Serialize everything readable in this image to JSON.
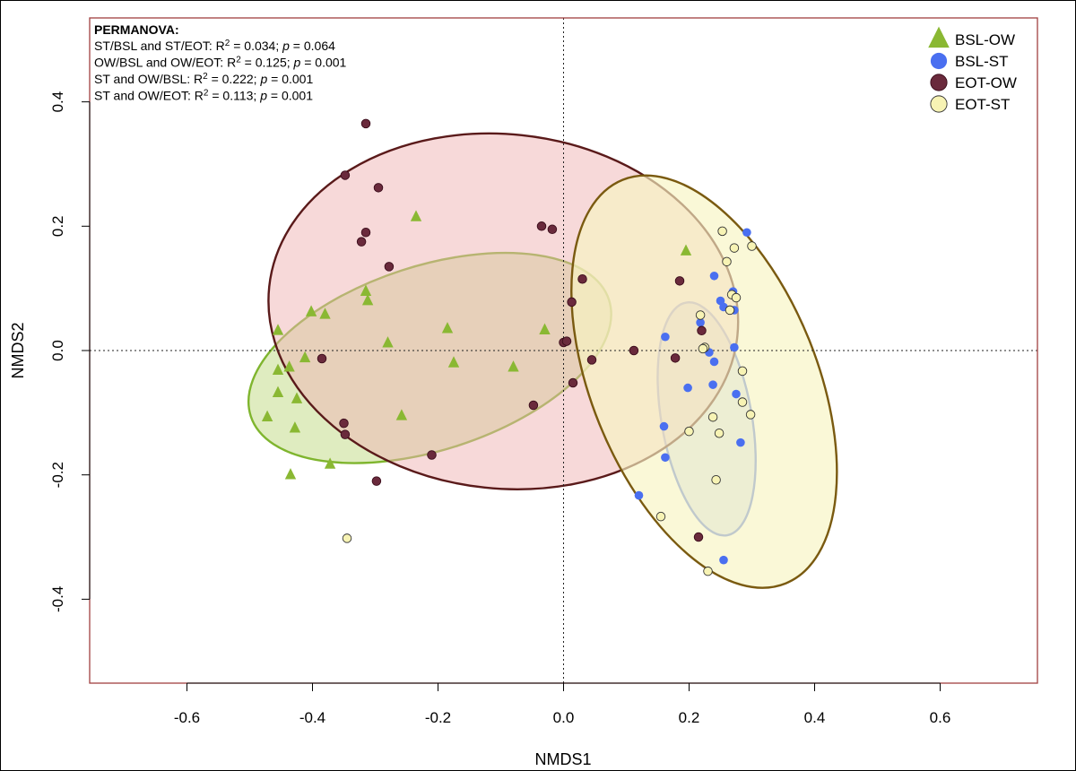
{
  "chart_data": {
    "type": "scatter",
    "xlabel": "NMDS1",
    "ylabel": "NMDS2",
    "xlim": [
      -0.755,
      0.755
    ],
    "ylim": [
      -0.535,
      0.535
    ],
    "x_ticks": [
      -0.6,
      -0.4,
      -0.2,
      0.0,
      0.2,
      0.4,
      0.6
    ],
    "y_ticks": [
      -0.4,
      -0.2,
      0.0,
      0.2,
      0.4
    ],
    "x_tick_labels": [
      "-0.6",
      "-0.4",
      "-0.2",
      "0.0",
      "0.2",
      "0.4",
      "0.6"
    ],
    "y_tick_labels": [
      "-0.4",
      "-0.2",
      "0.0",
      "0.2",
      "0.4"
    ],
    "reference_lines": {
      "x": 0,
      "y": 0,
      "style": "dotted"
    },
    "legend_position": "top-right",
    "annotation": {
      "title": "PERMANOVA:",
      "lines": [
        {
          "text": "ST/BSL and ST/EOT: R",
          "sup": "2",
          "mid": " = 0.034; ",
          "p": "p",
          "tail": " = 0.064"
        },
        {
          "text": "OW/BSL and OW/EOT: R",
          "sup": "2",
          "mid": " = 0.125; ",
          "p": "p",
          "tail": " = 0.001"
        },
        {
          "text": "ST and OW/BSL: R",
          "sup": "2",
          "mid": " = 0.222; ",
          "p": "p",
          "tail": " = 0.001"
        },
        {
          "text": "ST and OW/EOT: R",
          "sup": "2",
          "mid": " = 0.113; ",
          "p": "p",
          "tail": " = 0.001"
        }
      ]
    },
    "series": [
      {
        "name": "BSL-OW",
        "marker": "triangle",
        "color": "#8ab833",
        "ellipse": {
          "cx": -0.213,
          "cy": -0.012,
          "rx": 0.3,
          "ry": 0.148,
          "angle_deg": 18,
          "fill": "#a3c94a",
          "fill_opacity": 0.35,
          "stroke": "#7fb52e"
        },
        "points": [
          [
            -0.235,
            0.215
          ],
          [
            -0.315,
            0.095
          ],
          [
            -0.312,
            0.08
          ],
          [
            -0.402,
            0.062
          ],
          [
            -0.38,
            0.058
          ],
          [
            -0.455,
            0.032
          ],
          [
            -0.28,
            0.012
          ],
          [
            -0.185,
            0.035
          ],
          [
            -0.03,
            0.033
          ],
          [
            -0.175,
            -0.02
          ],
          [
            -0.08,
            -0.027
          ],
          [
            -0.412,
            -0.012
          ],
          [
            -0.437,
            -0.027
          ],
          [
            -0.455,
            -0.032
          ],
          [
            -0.455,
            -0.068
          ],
          [
            -0.425,
            -0.078
          ],
          [
            -0.258,
            -0.105
          ],
          [
            -0.472,
            -0.107
          ],
          [
            -0.428,
            -0.125
          ],
          [
            -0.372,
            -0.183
          ],
          [
            -0.435,
            -0.2
          ],
          [
            0.195,
            0.16
          ]
        ]
      },
      {
        "name": "BSL-ST",
        "marker": "circle",
        "color": "#4a6ff0",
        "ellipse": {
          "cx": 0.228,
          "cy": -0.11,
          "rx": 0.072,
          "ry": 0.19,
          "angle_deg": 10,
          "fill": "#b7c6e8",
          "fill_opacity": 0.5,
          "stroke": "#5a78e0"
        },
        "points": [
          [
            0.292,
            0.19
          ],
          [
            0.24,
            0.12
          ],
          [
            0.27,
            0.095
          ],
          [
            0.25,
            0.08
          ],
          [
            0.255,
            0.07
          ],
          [
            0.272,
            0.065
          ],
          [
            0.218,
            0.045
          ],
          [
            0.162,
            0.022
          ],
          [
            0.272,
            0.005
          ],
          [
            0.232,
            -0.003
          ],
          [
            0.24,
            -0.018
          ],
          [
            0.198,
            -0.06
          ],
          [
            0.238,
            -0.055
          ],
          [
            0.275,
            -0.07
          ],
          [
            0.16,
            -0.122
          ],
          [
            0.282,
            -0.148
          ],
          [
            0.162,
            -0.172
          ],
          [
            0.12,
            -0.233
          ],
          [
            0.255,
            -0.337
          ]
        ]
      },
      {
        "name": "EOT-OW",
        "marker": "circle",
        "color": "#6a2a3c",
        "ellipse": {
          "cx": -0.096,
          "cy": 0.063,
          "rx": 0.375,
          "ry": 0.285,
          "angle_deg": -6,
          "fill": "#f0b4b4",
          "fill_opacity": 0.5,
          "stroke": "#5a1a1a"
        },
        "points": [
          [
            -0.315,
            0.365
          ],
          [
            -0.348,
            0.282
          ],
          [
            -0.295,
            0.262
          ],
          [
            -0.315,
            0.19
          ],
          [
            -0.322,
            0.175
          ],
          [
            -0.035,
            0.2
          ],
          [
            -0.018,
            0.195
          ],
          [
            -0.278,
            0.135
          ],
          [
            0.03,
            0.115
          ],
          [
            0.185,
            0.112
          ],
          [
            0.013,
            0.078
          ],
          [
            -0.385,
            -0.013
          ],
          [
            0.0,
            0.013
          ],
          [
            0.005,
            0.015
          ],
          [
            0.112,
            0.0
          ],
          [
            0.178,
            -0.012
          ],
          [
            0.045,
            -0.015
          ],
          [
            0.015,
            -0.052
          ],
          [
            -0.048,
            -0.088
          ],
          [
            -0.35,
            -0.117
          ],
          [
            -0.348,
            -0.135
          ],
          [
            -0.21,
            -0.168
          ],
          [
            -0.298,
            -0.21
          ],
          [
            0.215,
            -0.3
          ],
          [
            0.22,
            0.032
          ]
        ]
      },
      {
        "name": "EOT-ST",
        "marker": "circle",
        "color": "#f7f3b4",
        "ellipse": {
          "cx": 0.224,
          "cy": -0.05,
          "rx": 0.18,
          "ry": 0.35,
          "angle_deg": 22,
          "fill": "#f8f4c2",
          "fill_opacity": 0.65,
          "stroke": "#7a5a10"
        },
        "points": [
          [
            0.253,
            0.192
          ],
          [
            0.3,
            0.168
          ],
          [
            0.272,
            0.165
          ],
          [
            0.26,
            0.143
          ],
          [
            0.268,
            0.09
          ],
          [
            0.275,
            0.085
          ],
          [
            0.265,
            0.065
          ],
          [
            0.218,
            0.057
          ],
          [
            0.225,
            0.005
          ],
          [
            0.222,
            0.003
          ],
          [
            0.285,
            -0.033
          ],
          [
            0.285,
            -0.083
          ],
          [
            0.298,
            -0.103
          ],
          [
            0.238,
            -0.107
          ],
          [
            0.248,
            -0.133
          ],
          [
            0.2,
            -0.13
          ],
          [
            0.243,
            -0.208
          ],
          [
            0.155,
            -0.267
          ],
          [
            -0.345,
            -0.302
          ],
          [
            0.23,
            -0.355
          ]
        ]
      }
    ]
  }
}
